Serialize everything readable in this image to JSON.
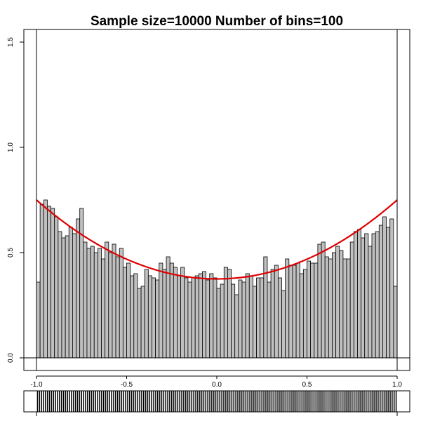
{
  "chart_data": {
    "type": "bar",
    "title": "Sample size=10000 Number of bins=100",
    "xlabel": "",
    "ylabel": "",
    "xlim": [
      -1.0,
      1.0
    ],
    "ylim": [
      0.0,
      1.5
    ],
    "x_ticks": [
      {
        "value": -1.0,
        "label": "-1.0"
      },
      {
        "value": -0.5,
        "label": "-0.5"
      },
      {
        "value": 0.0,
        "label": "0.0"
      },
      {
        "value": 0.5,
        "label": "0.5"
      },
      {
        "value": 1.0,
        "label": "1.0"
      }
    ],
    "y_ticks": [
      {
        "value": 0.0,
        "label": "0.0"
      },
      {
        "value": 0.5,
        "label": "0.5"
      },
      {
        "value": 1.0,
        "label": "1.0"
      },
      {
        "value": 1.5,
        "label": "1.5"
      }
    ],
    "grid": false,
    "bin_width": 0.02,
    "bar_fill": "#c0c0c0",
    "bar_stroke": "#000000",
    "density_values": [
      0.36,
      0.73,
      0.75,
      0.72,
      0.71,
      0.67,
      0.6,
      0.57,
      0.58,
      0.62,
      0.59,
      0.66,
      0.71,
      0.55,
      0.52,
      0.53,
      0.5,
      0.52,
      0.47,
      0.55,
      0.5,
      0.54,
      0.48,
      0.52,
      0.43,
      0.45,
      0.39,
      0.4,
      0.33,
      0.34,
      0.42,
      0.39,
      0.38,
      0.37,
      0.45,
      0.42,
      0.48,
      0.45,
      0.43,
      0.39,
      0.43,
      0.38,
      0.36,
      0.38,
      0.39,
      0.4,
      0.41,
      0.37,
      0.4,
      0.38,
      0.33,
      0.35,
      0.43,
      0.42,
      0.35,
      0.3,
      0.37,
      0.36,
      0.4,
      0.39,
      0.34,
      0.38,
      0.38,
      0.48,
      0.36,
      0.42,
      0.44,
      0.38,
      0.32,
      0.47,
      0.44,
      0.44,
      0.45,
      0.4,
      0.42,
      0.46,
      0.45,
      0.45,
      0.54,
      0.55,
      0.48,
      0.47,
      0.5,
      0.53,
      0.51,
      0.47,
      0.47,
      0.55,
      0.6,
      0.61,
      0.57,
      0.59,
      0.53,
      0.59,
      0.6,
      0.63,
      0.67,
      0.62,
      0.66,
      0.34
    ],
    "series": [
      {
        "type": "curve",
        "color": "#dd0000",
        "function": "0.375*(1+x^2)",
        "x_range": [
          -1.0,
          1.0
        ]
      }
    ],
    "rug": {
      "sample_size": 10000,
      "color": "#000000"
    }
  }
}
